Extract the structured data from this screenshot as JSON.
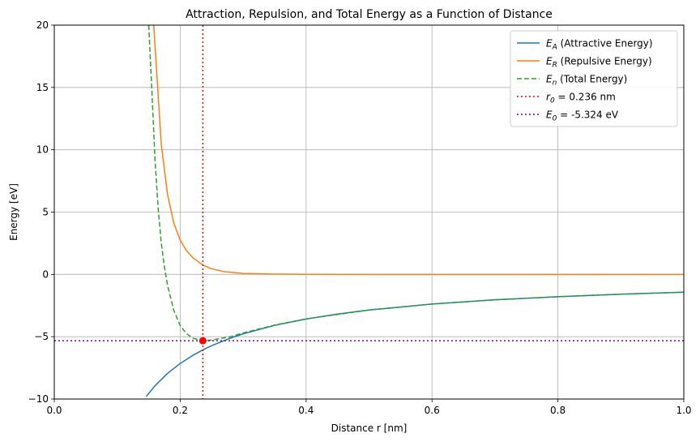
{
  "chart_data": {
    "type": "line",
    "title": "Attraction, Repulsion, and Total Energy as a Function of Distance",
    "xlabel": "Distance r [nm]",
    "ylabel": "Energy [eV]",
    "xlim": [
      0,
      1.0
    ],
    "ylim": [
      -10,
      20
    ],
    "x_ticks": [
      "0.0",
      "0.2",
      "0.4",
      "0.6",
      "0.8",
      "1.0"
    ],
    "x_tick_values": [
      0,
      0.2,
      0.4,
      0.6,
      0.8,
      1.0
    ],
    "y_ticks": [
      "−10",
      "−5",
      "0",
      "5",
      "10",
      "15",
      "20"
    ],
    "y_tick_values": [
      -10,
      -5,
      0,
      5,
      10,
      15,
      20
    ],
    "grid": true,
    "legend_position": "top-right",
    "series": [
      {
        "name": "E_A (Attractive Energy)",
        "legend_symbol": "E",
        "legend_sub": "A",
        "legend_text": " (Attractive Energy)",
        "color": "#1f77b4",
        "style": "solid",
        "x": [
          0.146,
          0.16,
          0.18,
          0.2,
          0.22,
          0.236,
          0.25,
          0.28,
          0.3,
          0.35,
          0.4,
          0.45,
          0.5,
          0.6,
          0.7,
          0.8,
          0.9,
          1.0
        ],
        "y": [
          -9.8,
          -8.94,
          -7.94,
          -7.15,
          -6.5,
          -6.06,
          -5.72,
          -5.11,
          -4.77,
          -4.09,
          -3.58,
          -3.18,
          -2.86,
          -2.38,
          -2.04,
          -1.79,
          -1.59,
          -1.43
        ]
      },
      {
        "name": "E_R (Repulsive Energy)",
        "legend_symbol": "E",
        "legend_sub": "R",
        "legend_text": " (Repulsive Energy)",
        "color": "#ff7f0e",
        "style": "solid",
        "x": [
          0.158,
          0.17,
          0.18,
          0.19,
          0.2,
          0.21,
          0.22,
          0.236,
          0.25,
          0.27,
          0.3,
          0.35,
          0.4,
          0.5,
          0.7,
          1.0
        ],
        "y": [
          20,
          10.4,
          6.4,
          4.1,
          2.75,
          1.9,
          1.35,
          0.74,
          0.45,
          0.22,
          0.08,
          0.02,
          0.005,
          0.0,
          0.0,
          0.0
        ]
      },
      {
        "name": "E_n (Total Energy)",
        "legend_symbol": "E",
        "legend_sub": "n",
        "legend_text": " (Total Energy)",
        "color": "#2ca02c",
        "style": "dashed",
        "x": [
          0.15,
          0.155,
          0.16,
          0.165,
          0.17,
          0.175,
          0.18,
          0.19,
          0.2,
          0.21,
          0.22,
          0.236,
          0.25,
          0.28,
          0.3,
          0.35,
          0.4,
          0.5,
          0.6,
          0.7,
          0.8,
          0.9,
          1.0
        ],
        "y": [
          20,
          14.8,
          9.2,
          5.3,
          2.5,
          0.6,
          -0.9,
          -2.9,
          -4.1,
          -4.75,
          -5.12,
          -5.32,
          -5.27,
          -5.0,
          -4.7,
          -4.07,
          -3.57,
          -2.86,
          -2.38,
          -2.04,
          -1.79,
          -1.59,
          -1.43
        ]
      },
      {
        "name": "r_0 = 0.236 nm",
        "legend_symbol": "r",
        "legend_sub": "0",
        "legend_text": " = 0.236 nm",
        "color": "#ff0000",
        "style": "dotted",
        "orientation": "vertical",
        "value": 0.236
      },
      {
        "name": "E_0 = -5.324 eV",
        "legend_symbol": "E",
        "legend_sub": "0",
        "legend_text": " = -5.324 eV",
        "color": "#800080",
        "style": "dotted",
        "orientation": "horizontal",
        "value": -5.324
      }
    ],
    "marker": {
      "x": 0.236,
      "y": -5.324,
      "color": "#ff0000"
    }
  }
}
